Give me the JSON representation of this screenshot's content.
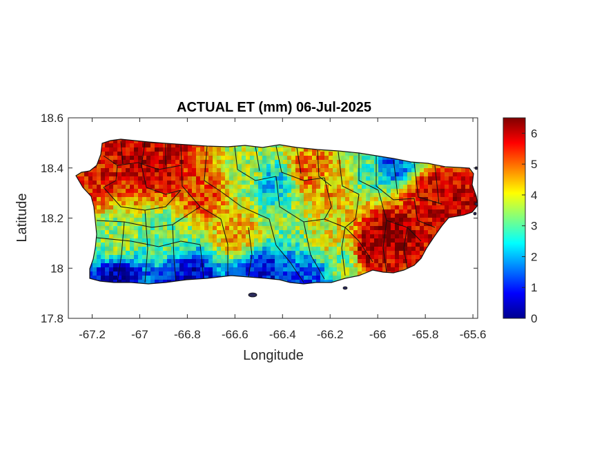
{
  "figure": {
    "title": "ACTUAL ET (mm) 06-Jul-2025",
    "xlabel": "Longitude",
    "ylabel": "Latitude"
  },
  "chart_data": {
    "type": "heatmap",
    "title": "ACTUAL ET (mm) 06-Jul-2025",
    "xlabel": "Longitude",
    "ylabel": "Latitude",
    "xlim": [
      -67.3,
      -65.58
    ],
    "ylim": [
      17.8,
      18.6
    ],
    "x_ticks": [
      -67.2,
      -67,
      -66.8,
      -66.6,
      -66.4,
      -66.2,
      -66,
      -65.8,
      -65.6
    ],
    "x_tick_labels": [
      "-67.2",
      "-67",
      "-66.8",
      "-66.6",
      "-66.4",
      "-66.2",
      "-66",
      "-65.8",
      "-65.6"
    ],
    "y_ticks": [
      17.8,
      18,
      18.2,
      18.4,
      18.6
    ],
    "y_tick_labels": [
      "17.8",
      "18",
      "18.2",
      "18.4",
      "18.6"
    ],
    "colorbar": {
      "colormap": "jet",
      "range": [
        0,
        6.5
      ],
      "ticks": [
        0,
        1,
        2,
        3,
        4,
        5,
        6
      ],
      "tick_labels": [
        "0",
        "1",
        "2",
        "3",
        "4",
        "5",
        "6"
      ]
    },
    "grid": false,
    "legend": "none",
    "region": "Puerto Rico",
    "pattern": {
      "note": "ET values (mm) sampled at representative locations (lon, lat, value)",
      "samples": [
        [
          -67.2,
          18.4,
          5.6
        ],
        [
          -67.0,
          18.45,
          6.0
        ],
        [
          -66.9,
          18.42,
          5.8
        ],
        [
          -66.75,
          18.3,
          5.2
        ],
        [
          -66.55,
          18.4,
          3.6
        ],
        [
          -66.45,
          18.35,
          2.2
        ],
        [
          -66.3,
          18.4,
          5.0
        ],
        [
          -66.2,
          18.35,
          4.5
        ],
        [
          -66.05,
          18.4,
          3.0
        ],
        [
          -65.95,
          18.42,
          1.5
        ],
        [
          -65.8,
          18.3,
          5.8
        ],
        [
          -65.7,
          18.25,
          6.0
        ],
        [
          -65.95,
          18.15,
          6.3
        ],
        [
          -66.05,
          18.08,
          6.2
        ],
        [
          -66.2,
          18.12,
          4.0
        ],
        [
          -66.6,
          18.15,
          4.5
        ],
        [
          -66.9,
          18.15,
          3.2
        ],
        [
          -67.1,
          18.1,
          3.5
        ],
        [
          -67.1,
          17.98,
          0.4
        ],
        [
          -66.8,
          17.97,
          0.6
        ],
        [
          -66.5,
          17.98,
          0.8
        ],
        [
          -66.3,
          17.97,
          1.2
        ],
        [
          -66.15,
          18.05,
          3.2
        ]
      ]
    }
  },
  "colors": {
    "jet_dark_blue": "#00008f",
    "jet_blue": "#0000ff",
    "jet_cyan": "#00ffff",
    "jet_yellow": "#ffff00",
    "jet_red": "#ff0000",
    "jet_dark_red": "#800000",
    "outline": "#111111"
  }
}
